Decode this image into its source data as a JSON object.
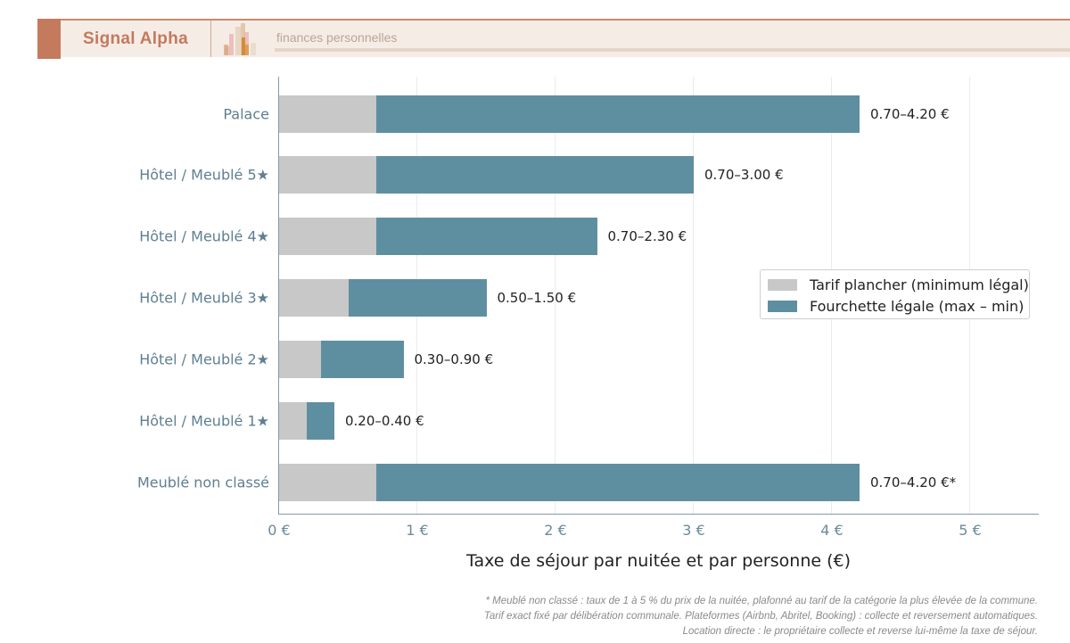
{
  "header": {
    "brand": "Signal Alpha",
    "tagline": "finances personnelles",
    "logo_icon": "bar-chart-logo-icon"
  },
  "colors": {
    "header_accent": "#c47a5c",
    "header_bg": "#f6ece6",
    "min_bar": "#c8c8c8",
    "range_bar": "#5e8fa0",
    "axis": "#7f9cab"
  },
  "chart_data": {
    "type": "bar",
    "orientation": "horizontal",
    "stacked": true,
    "title": "",
    "xlabel": "Taxe de séjour par nuitée et par personne (€)",
    "ylabel": "",
    "xlim": [
      0,
      5.5
    ],
    "x_ticks": [
      "0 €",
      "1 €",
      "2 €",
      "3 €",
      "4 €",
      "5 €"
    ],
    "grid": "vertical",
    "legend_position": "right-center",
    "categories": [
      "Palace",
      "Hôtel / Meublé 5★",
      "Hôtel / Meublé 4★",
      "Hôtel / Meublé 3★",
      "Hôtel / Meublé 2★",
      "Hôtel / Meublé 1★",
      "Meublé non classé"
    ],
    "series": [
      {
        "name": "Tarif plancher (minimum légal)",
        "color": "#c8c8c8",
        "values": [
          0.7,
          0.7,
          0.7,
          0.5,
          0.3,
          0.2,
          0.7
        ]
      },
      {
        "name": "Fourchette légale (max – min)",
        "color": "#5e8fa0",
        "values": [
          3.5,
          2.3,
          1.6,
          1.0,
          0.6,
          0.2,
          3.5
        ]
      }
    ],
    "max_values": [
      4.2,
      3.0,
      2.3,
      1.5,
      0.9,
      0.4,
      4.2
    ],
    "data_labels": [
      "0.70–4.20 €",
      "0.70–3.00 €",
      "0.70–2.30 €",
      "0.50–1.50 €",
      "0.30–0.90 €",
      "0.20–0.40 €",
      "0.70–4.20 €*"
    ]
  },
  "legend": {
    "items": [
      {
        "label": "Tarif plancher (minimum légal)"
      },
      {
        "label": "Fourchette légale (max – min)"
      }
    ]
  },
  "footnote": {
    "lines": [
      "* Meublé non classé : taux de 1 à 5 % du prix de la nuitée, plafonné au tarif de la catégorie la plus élevée de la commune.",
      "Tarif exact fixé par délibération communale. Plateformes (Airbnb, Abritel, Booking) : collecte et reversement automatiques.",
      "Location directe : le propriétaire collecte et reverse lui-même la taxe de séjour."
    ]
  }
}
